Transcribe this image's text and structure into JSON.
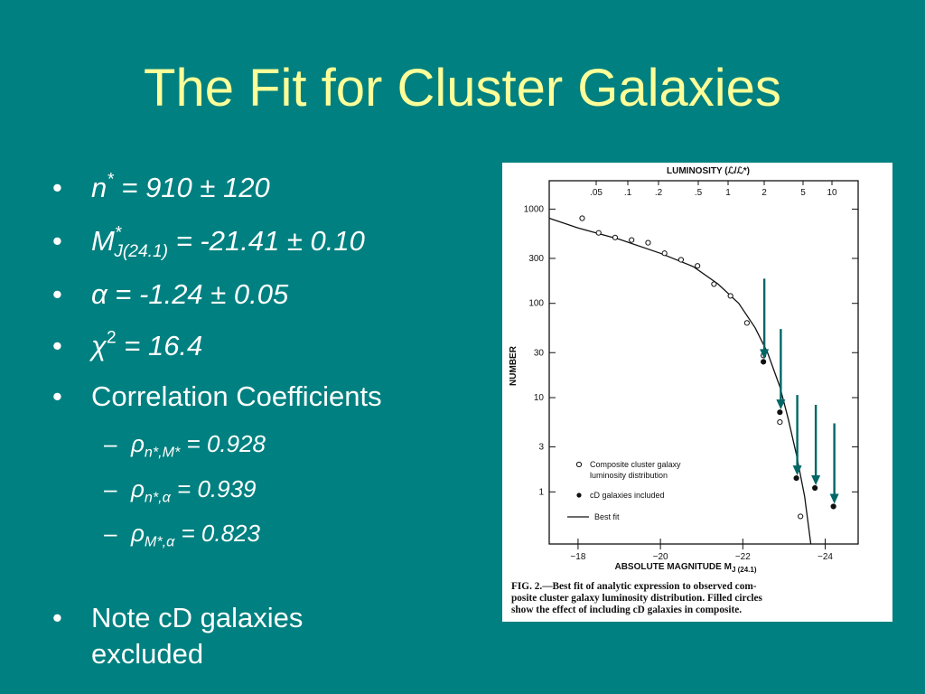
{
  "slide": {
    "title": "The Fit for Cluster Galaxies",
    "bullets": [
      {
        "symbol": "n",
        "sup": "*",
        "sub": "",
        "rest": " = 910 ± 120"
      },
      {
        "symbol": "M",
        "sup": "*",
        "sub": "J(24.1)",
        "rest": " = -21.41 ± 0.10"
      },
      {
        "symbol": "α",
        "sup": "",
        "sub": "",
        "rest": " = -1.24 ± 0.05"
      },
      {
        "symbol": "χ",
        "sup": "2",
        "sub": "",
        "rest": " = 16.4"
      },
      {
        "text": "Correlation Coefficients"
      }
    ],
    "sub_bullets": [
      {
        "symbol": "ρ",
        "sub": "n*,M*",
        "rest": " = 0.928"
      },
      {
        "symbol": "ρ",
        "sub": "n*,α",
        "rest": " = 0.939"
      },
      {
        "symbol": "ρ",
        "sub": "M*,α",
        "rest": " = 0.823"
      }
    ],
    "note_line1": "Note cD galaxies",
    "note_line2": "excluded",
    "bullet_char": "•",
    "dash_char": "–"
  },
  "chart_data": {
    "type": "scatter",
    "title": "LUMINOSITY (ℒ/ℒ*)",
    "xlabel": "ABSOLUTE MAGNITUDE M",
    "xlabel_sub": "J (24.1)",
    "ylabel": "NUMBER",
    "y_scale": "log",
    "xlim": [
      -17.3,
      -24.8
    ],
    "ylim": [
      0.28,
      2000
    ],
    "x_ticks": [
      -18,
      -20,
      -22,
      -24
    ],
    "x_tick_labels": [
      "−18",
      "−20",
      "−22",
      "−24"
    ],
    "y_ticks": [
      1,
      3,
      10,
      30,
      100,
      300,
      1000
    ],
    "y_tick_labels": [
      "1",
      "3",
      "10",
      "30",
      "100",
      "300",
      "1000"
    ],
    "top_axis_labels": [
      ".05",
      ".1",
      ".2",
      ".5",
      "1",
      "2",
      "5",
      "10"
    ],
    "series": [
      {
        "name": "Composite cluster galaxy luminosity distribution",
        "marker": "open",
        "points": [
          [
            -18.1,
            800
          ],
          [
            -18.5,
            560
          ],
          [
            -18.9,
            500
          ],
          [
            -19.3,
            470
          ],
          [
            -19.7,
            440
          ],
          [
            -20.1,
            340
          ],
          [
            -20.5,
            290
          ],
          [
            -20.9,
            250
          ],
          [
            -21.3,
            160
          ],
          [
            -21.7,
            120
          ],
          [
            -22.1,
            62
          ],
          [
            -22.5,
            28
          ],
          [
            -22.9,
            5.5
          ],
          [
            -23.4,
            0.55
          ]
        ]
      },
      {
        "name": "cD galaxies included",
        "marker": "filled",
        "points": [
          [
            -22.5,
            24
          ],
          [
            -22.9,
            7
          ],
          [
            -23.3,
            1.4
          ],
          [
            -23.75,
            1.1
          ],
          [
            -24.2,
            0.7
          ]
        ]
      }
    ],
    "fit_line_label": "Best fit",
    "fit_line": [
      [
        -17.3,
        800
      ],
      [
        -18.0,
        630
      ],
      [
        -19.0,
        480
      ],
      [
        -20.0,
        340
      ],
      [
        -20.8,
        245
      ],
      [
        -21.4,
        160
      ],
      [
        -21.9,
        100
      ],
      [
        -22.3,
        55
      ],
      [
        -22.6,
        30
      ],
      [
        -22.9,
        13
      ],
      [
        -23.1,
        6
      ],
      [
        -23.3,
        2.5
      ],
      [
        -23.5,
        0.9
      ],
      [
        -23.65,
        0.28
      ]
    ],
    "arrow_color": "#006666",
    "caption_line1": "FIG. 2.—Best fit of analytic expression to observed com-",
    "caption_line2": "posite cluster galaxy luminosity distribution. Filled circles",
    "caption_line3": "show the effect of including cD galaxies in composite."
  }
}
